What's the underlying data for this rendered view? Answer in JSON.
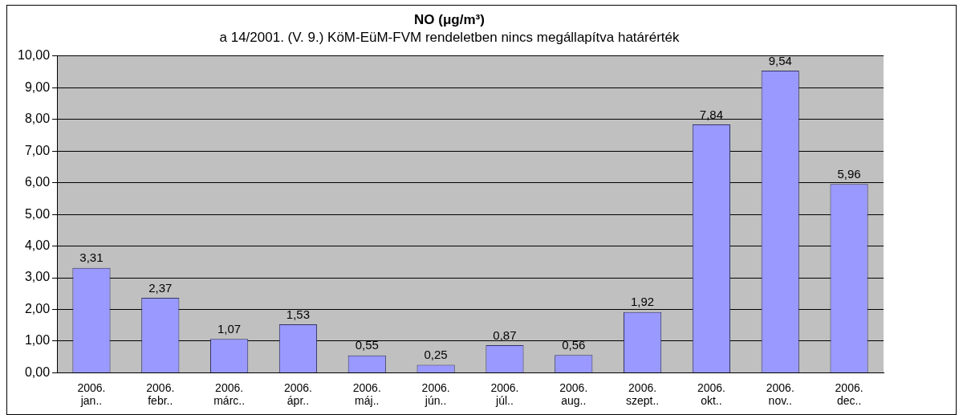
{
  "chart_data": {
    "type": "bar",
    "title": "NO (μg/m³)",
    "subtitle": "a 14/2001. (V. 9.) KöM-EüM-FVM rendeletben nincs megállapítva határérték",
    "categories": [
      "2006. jan..",
      "2006. febr..",
      "2006. márc..",
      "2006. ápr..",
      "2006. máj..",
      "2006. jún..",
      "2006. júl..",
      "2006. aug..",
      "2006. szept..",
      "2006. okt..",
      "2006. nov..",
      "2006. dec.."
    ],
    "values": [
      3.31,
      2.37,
      1.07,
      1.53,
      0.55,
      0.25,
      0.87,
      0.56,
      1.92,
      7.84,
      9.54,
      5.96
    ],
    "value_labels": [
      "3,31",
      "2,37",
      "1,07",
      "1,53",
      "0,55",
      "0,25",
      "0,87",
      "0,56",
      "1,92",
      "7,84",
      "9,54",
      "5,96"
    ],
    "color": "#9999ff",
    "ylim": [
      0,
      10
    ],
    "yticks": [
      {
        "value": 0,
        "label": "0,00"
      },
      {
        "value": 1,
        "label": "1,00"
      },
      {
        "value": 2,
        "label": "2,00"
      },
      {
        "value": 3,
        "label": "3,00"
      },
      {
        "value": 4,
        "label": "4,00"
      },
      {
        "value": 5,
        "label": "5,00"
      },
      {
        "value": 6,
        "label": "6,00"
      },
      {
        "value": 7,
        "label": "7,00"
      },
      {
        "value": 8,
        "label": "8,00"
      },
      {
        "value": 9,
        "label": "9,00"
      },
      {
        "value": 10,
        "label": "10,00"
      }
    ],
    "grid": "y",
    "legend": false
  }
}
